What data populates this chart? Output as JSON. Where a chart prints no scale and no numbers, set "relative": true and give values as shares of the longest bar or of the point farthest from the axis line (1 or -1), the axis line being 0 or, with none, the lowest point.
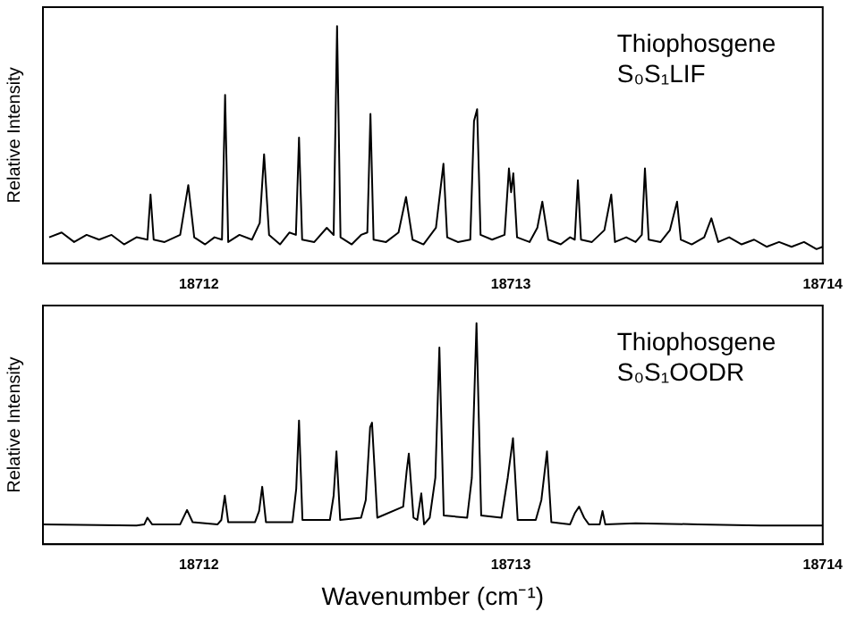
{
  "chart_data": [
    {
      "type": "line",
      "relative": true,
      "ylabel": "Relative Intensity",
      "xlim": [
        18711.5,
        18714
      ],
      "xticks": [
        18712,
        18713,
        18714
      ],
      "annotations": [
        "Thiophosgene",
        "S₀S₁LIF"
      ],
      "series": [
        {
          "color": "#000000",
          "x": [
            18711.52,
            18711.56,
            18711.6,
            18711.64,
            18711.68,
            18711.72,
            18711.76,
            18711.8,
            18711.835,
            18711.845,
            18711.855,
            18711.89,
            18711.94,
            18711.966,
            18711.985,
            18712.02,
            18712.05,
            18712.074,
            18712.084,
            18712.094,
            18712.13,
            18712.17,
            18712.195,
            18712.209,
            18712.225,
            18712.26,
            18712.29,
            18712.311,
            18712.321,
            18712.331,
            18712.37,
            18712.41,
            18712.432,
            18712.443,
            18712.454,
            18712.49,
            18712.52,
            18712.54,
            18712.55,
            18712.56,
            18712.6,
            18712.64,
            18712.664,
            18712.685,
            18712.72,
            18712.76,
            18712.784,
            18712.796,
            18712.83,
            18712.87,
            18712.882,
            18712.892,
            18712.903,
            18712.94,
            18712.98,
            18712.994,
            18713.001,
            18713.008,
            18713.02,
            18713.06,
            18713.085,
            18713.101,
            18713.12,
            18713.16,
            18713.19,
            18713.205,
            18713.215,
            18713.225,
            18713.26,
            18713.3,
            18713.322,
            18713.334,
            18713.37,
            18713.4,
            18713.42,
            18713.43,
            18713.442,
            18713.48,
            18713.51,
            18713.533,
            18713.545,
            18713.58,
            18713.62,
            18713.643,
            18713.665,
            18713.7,
            18713.74,
            18713.78,
            18713.82,
            18713.86,
            18713.9,
            18713.94,
            18713.98,
            18714
          ],
          "values": [
            0.11,
            0.13,
            0.09,
            0.12,
            0.1,
            0.12,
            0.08,
            0.11,
            0.1,
            0.29,
            0.1,
            0.09,
            0.12,
            0.33,
            0.11,
            0.08,
            0.11,
            0.1,
            0.71,
            0.09,
            0.12,
            0.1,
            0.17,
            0.46,
            0.12,
            0.08,
            0.13,
            0.12,
            0.53,
            0.1,
            0.09,
            0.15,
            0.12,
            1.0,
            0.11,
            0.08,
            0.12,
            0.13,
            0.63,
            0.1,
            0.09,
            0.13,
            0.28,
            0.1,
            0.08,
            0.15,
            0.42,
            0.11,
            0.09,
            0.1,
            0.6,
            0.65,
            0.12,
            0.1,
            0.12,
            0.4,
            0.3,
            0.38,
            0.11,
            0.09,
            0.15,
            0.26,
            0.1,
            0.08,
            0.11,
            0.1,
            0.35,
            0.1,
            0.09,
            0.14,
            0.29,
            0.09,
            0.11,
            0.09,
            0.12,
            0.4,
            0.1,
            0.09,
            0.14,
            0.26,
            0.1,
            0.08,
            0.11,
            0.19,
            0.09,
            0.11,
            0.08,
            0.1,
            0.07,
            0.09,
            0.07,
            0.09,
            0.06,
            0.07
          ]
        }
      ]
    },
    {
      "type": "line",
      "relative": true,
      "ylabel": "Relative Intensity",
      "xlabel": "Wavenumber (cm⁻¹)",
      "xlim": [
        18711.5,
        18714
      ],
      "xticks": [
        18712,
        18713,
        18714
      ],
      "annotations": [
        "Thiophosgene",
        "S₀S₁OODR"
      ],
      "series": [
        {
          "color": "#000000",
          "x": [
            18711.5,
            18711.8,
            18711.825,
            18711.835,
            18711.85,
            18711.94,
            18711.962,
            18711.98,
            18712.06,
            18712.072,
            18712.083,
            18712.094,
            18712.18,
            18712.193,
            18712.203,
            18712.215,
            18712.3,
            18712.312,
            18712.321,
            18712.332,
            18712.42,
            18712.432,
            18712.441,
            18712.453,
            18712.52,
            18712.535,
            18712.549,
            18712.555,
            18712.572,
            18712.655,
            18712.666,
            18712.673,
            18712.688,
            18712.7,
            18712.713,
            18712.722,
            18712.74,
            18712.758,
            18712.771,
            18712.785,
            18712.86,
            18712.875,
            18712.89,
            18712.905,
            18712.97,
            18712.99,
            18713.007,
            18713.022,
            18713.08,
            18713.098,
            18713.116,
            18713.13,
            18713.19,
            18713.205,
            18713.219,
            18713.235,
            18713.25,
            18713.285,
            18713.294,
            18713.303,
            18713.4,
            18713.6,
            18713.8,
            18714
          ],
          "values": [
            0.09,
            0.085,
            0.09,
            0.12,
            0.09,
            0.09,
            0.155,
            0.1,
            0.09,
            0.11,
            0.22,
            0.1,
            0.1,
            0.15,
            0.26,
            0.1,
            0.1,
            0.25,
            0.56,
            0.11,
            0.11,
            0.22,
            0.42,
            0.11,
            0.12,
            0.2,
            0.53,
            0.55,
            0.12,
            0.17,
            0.33,
            0.41,
            0.12,
            0.11,
            0.23,
            0.09,
            0.12,
            0.3,
            0.89,
            0.13,
            0.12,
            0.3,
            1.0,
            0.13,
            0.12,
            0.3,
            0.48,
            0.11,
            0.11,
            0.2,
            0.42,
            0.1,
            0.09,
            0.14,
            0.17,
            0.12,
            0.09,
            0.09,
            0.15,
            0.09,
            0.095,
            0.09,
            0.085,
            0.085
          ]
        }
      ]
    }
  ]
}
